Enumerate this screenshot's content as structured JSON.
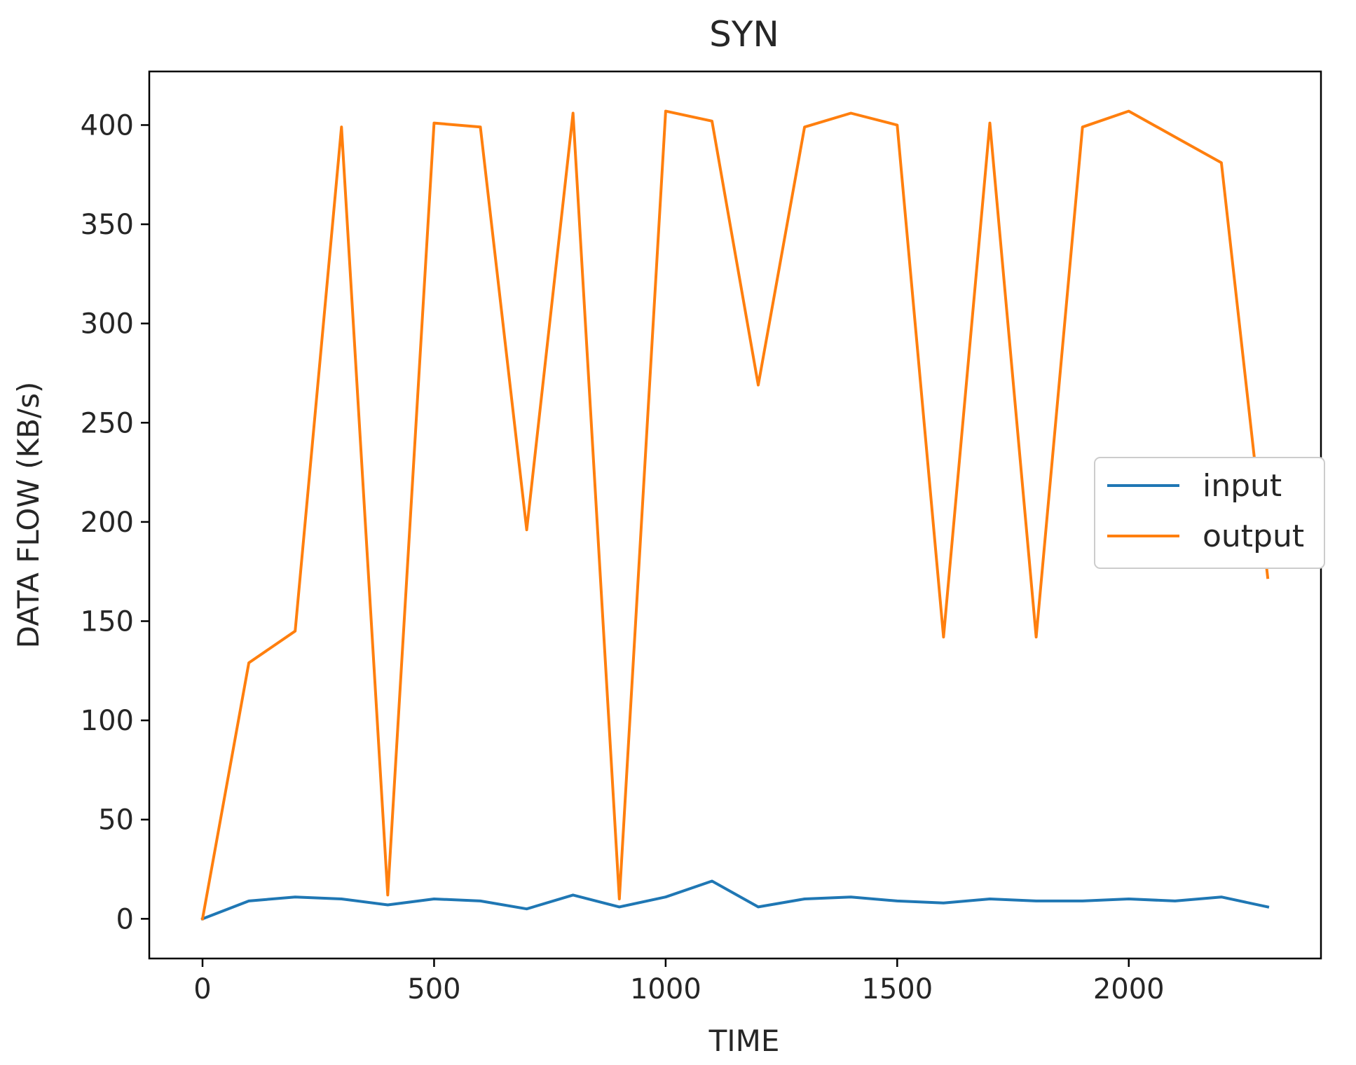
{
  "chart_data": {
    "type": "line",
    "title": "SYN",
    "xlabel": "TIME",
    "ylabel": "DATA FLOW (KB/s)",
    "xlim": [
      -115,
      2415
    ],
    "ylim": [
      -20,
      427
    ],
    "xticks": [
      0,
      500,
      1000,
      1500,
      2000
    ],
    "yticks": [
      0,
      50,
      100,
      150,
      200,
      250,
      300,
      350,
      400
    ],
    "x": [
      0,
      100,
      200,
      300,
      400,
      500,
      600,
      700,
      800,
      900,
      1000,
      1100,
      1200,
      1300,
      1400,
      1500,
      1600,
      1700,
      1800,
      1900,
      2000,
      2100,
      2200,
      2300
    ],
    "series": [
      {
        "name": "input",
        "color": "#1f77b4",
        "values": [
          0,
          9,
          11,
          10,
          7,
          10,
          9,
          5,
          12,
          6,
          11,
          19,
          6,
          10,
          11,
          9,
          8,
          10,
          9,
          9,
          10,
          9,
          11,
          6
        ]
      },
      {
        "name": "output",
        "color": "#ff7f0e",
        "values": [
          0,
          129,
          145,
          399,
          12,
          401,
          399,
          196,
          406,
          10,
          407,
          402,
          269,
          399,
          406,
          400,
          142,
          401,
          142,
          399,
          407,
          394,
          381,
          172
        ]
      }
    ],
    "grid": false,
    "legend": "center-right"
  }
}
